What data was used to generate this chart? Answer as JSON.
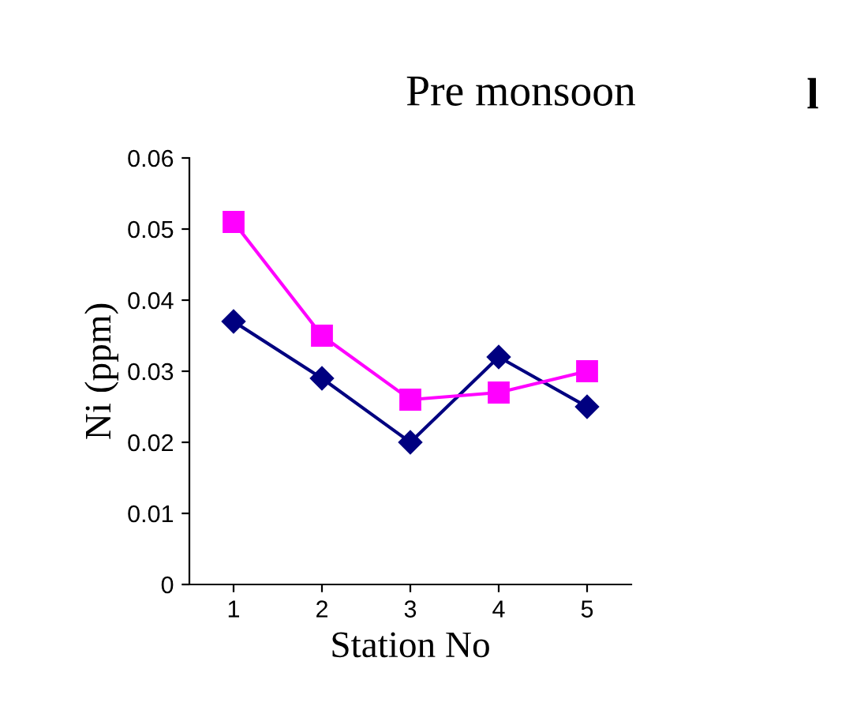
{
  "chart_data": {
    "type": "line",
    "title": "Pre monsoon",
    "annotations": [
      "l"
    ],
    "xlabel": "Station No",
    "ylabel": "Ni (ppm)",
    "categories": [
      "1",
      "2",
      "3",
      "4",
      "5"
    ],
    "series": [
      {
        "color": "#000080",
        "values": [
          0.037,
          0.029,
          0.02,
          0.032,
          0.025
        ],
        "marker": "diamond"
      },
      {
        "color": "#ff00ff",
        "values": [
          0.051,
          0.035,
          0.026,
          0.027,
          0.03
        ],
        "marker": "square"
      }
    ],
    "ylim": [
      0,
      0.06
    ],
    "yticks": [
      {
        "value": 0,
        "label": "0"
      },
      {
        "value": 0.01,
        "label": "0.01"
      },
      {
        "value": 0.02,
        "label": "0.02"
      },
      {
        "value": 0.03,
        "label": "0.03"
      },
      {
        "value": 0.04,
        "label": "0.04"
      },
      {
        "value": 0.05,
        "label": "0.05"
      },
      {
        "value": 0.06,
        "label": "0.06"
      }
    ],
    "grid": false,
    "legend": false
  }
}
